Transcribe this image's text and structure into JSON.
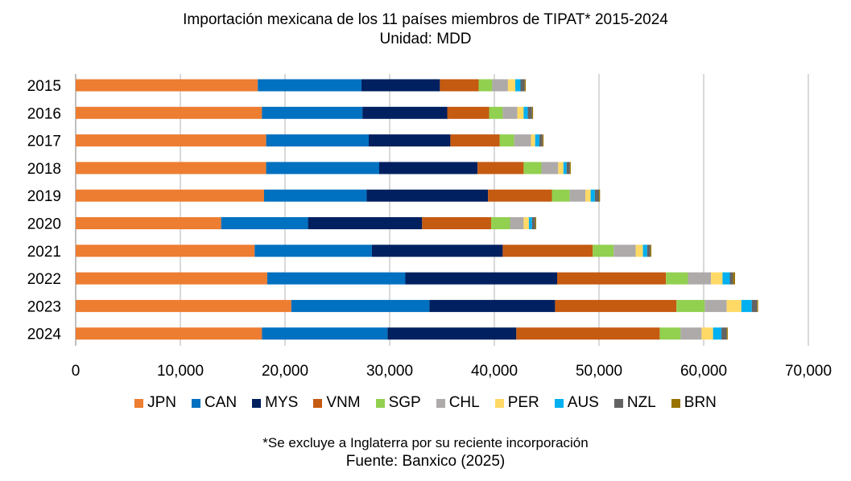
{
  "chart_data": {
    "type": "bar",
    "orientation": "horizontal",
    "stacked": true,
    "title": "Importación mexicana de los 11 países miembros de TIPAT* 2015-2024",
    "subtitle": "Unidad: MDD",
    "categories": [
      "2015",
      "2016",
      "2017",
      "2018",
      "2019",
      "2020",
      "2021",
      "2022",
      "2023",
      "2024"
    ],
    "xlim": [
      0,
      70000
    ],
    "x_ticks": [
      "0",
      "10,000",
      "20,000",
      "30,000",
      "40,000",
      "50,000",
      "60,000",
      "70,000"
    ],
    "grid": "vertical",
    "legend_position": "bottom",
    "series": [
      {
        "name": "JPN",
        "color": "#ED7D31",
        "values": [
          17400,
          17800,
          18200,
          18200,
          18000,
          13900,
          17100,
          18300,
          20600,
          17800
        ]
      },
      {
        "name": "CAN",
        "color": "#0070C0",
        "values": [
          9900,
          9600,
          9800,
          10800,
          9800,
          8300,
          11200,
          13200,
          13200,
          12000
        ]
      },
      {
        "name": "MYS",
        "color": "#002060",
        "values": [
          7500,
          8100,
          7800,
          9400,
          11600,
          10900,
          12500,
          14500,
          12000,
          12300
        ]
      },
      {
        "name": "VNM",
        "color": "#C55A11",
        "values": [
          3700,
          4000,
          4700,
          4400,
          6100,
          6600,
          8600,
          10400,
          11600,
          13700
        ]
      },
      {
        "name": "SGP",
        "color": "#92D050",
        "values": [
          1300,
          1300,
          1400,
          1700,
          1700,
          1800,
          2000,
          2100,
          2700,
          2000
        ]
      },
      {
        "name": "CHL",
        "color": "#AEAAAA",
        "values": [
          1500,
          1400,
          1600,
          1600,
          1500,
          1300,
          2100,
          2200,
          2100,
          2000
        ]
      },
      {
        "name": "PER",
        "color": "#FFD966",
        "values": [
          700,
          600,
          400,
          500,
          500,
          500,
          700,
          1100,
          1400,
          1100
        ]
      },
      {
        "name": "AUS",
        "color": "#00B0F0",
        "values": [
          500,
          400,
          400,
          300,
          400,
          300,
          400,
          700,
          1000,
          800
        ]
      },
      {
        "name": "NZL",
        "color": "#636363",
        "values": [
          400,
          400,
          300,
          300,
          400,
          300,
          300,
          300,
          500,
          500
        ]
      },
      {
        "name": "BRN",
        "color": "#997300",
        "values": [
          100,
          100,
          100,
          100,
          100,
          100,
          100,
          200,
          100,
          100
        ]
      }
    ]
  },
  "footnote": "*Se excluye a Inglaterra por su reciente incorporación",
  "source": "Fuente: Banxico (2025)"
}
